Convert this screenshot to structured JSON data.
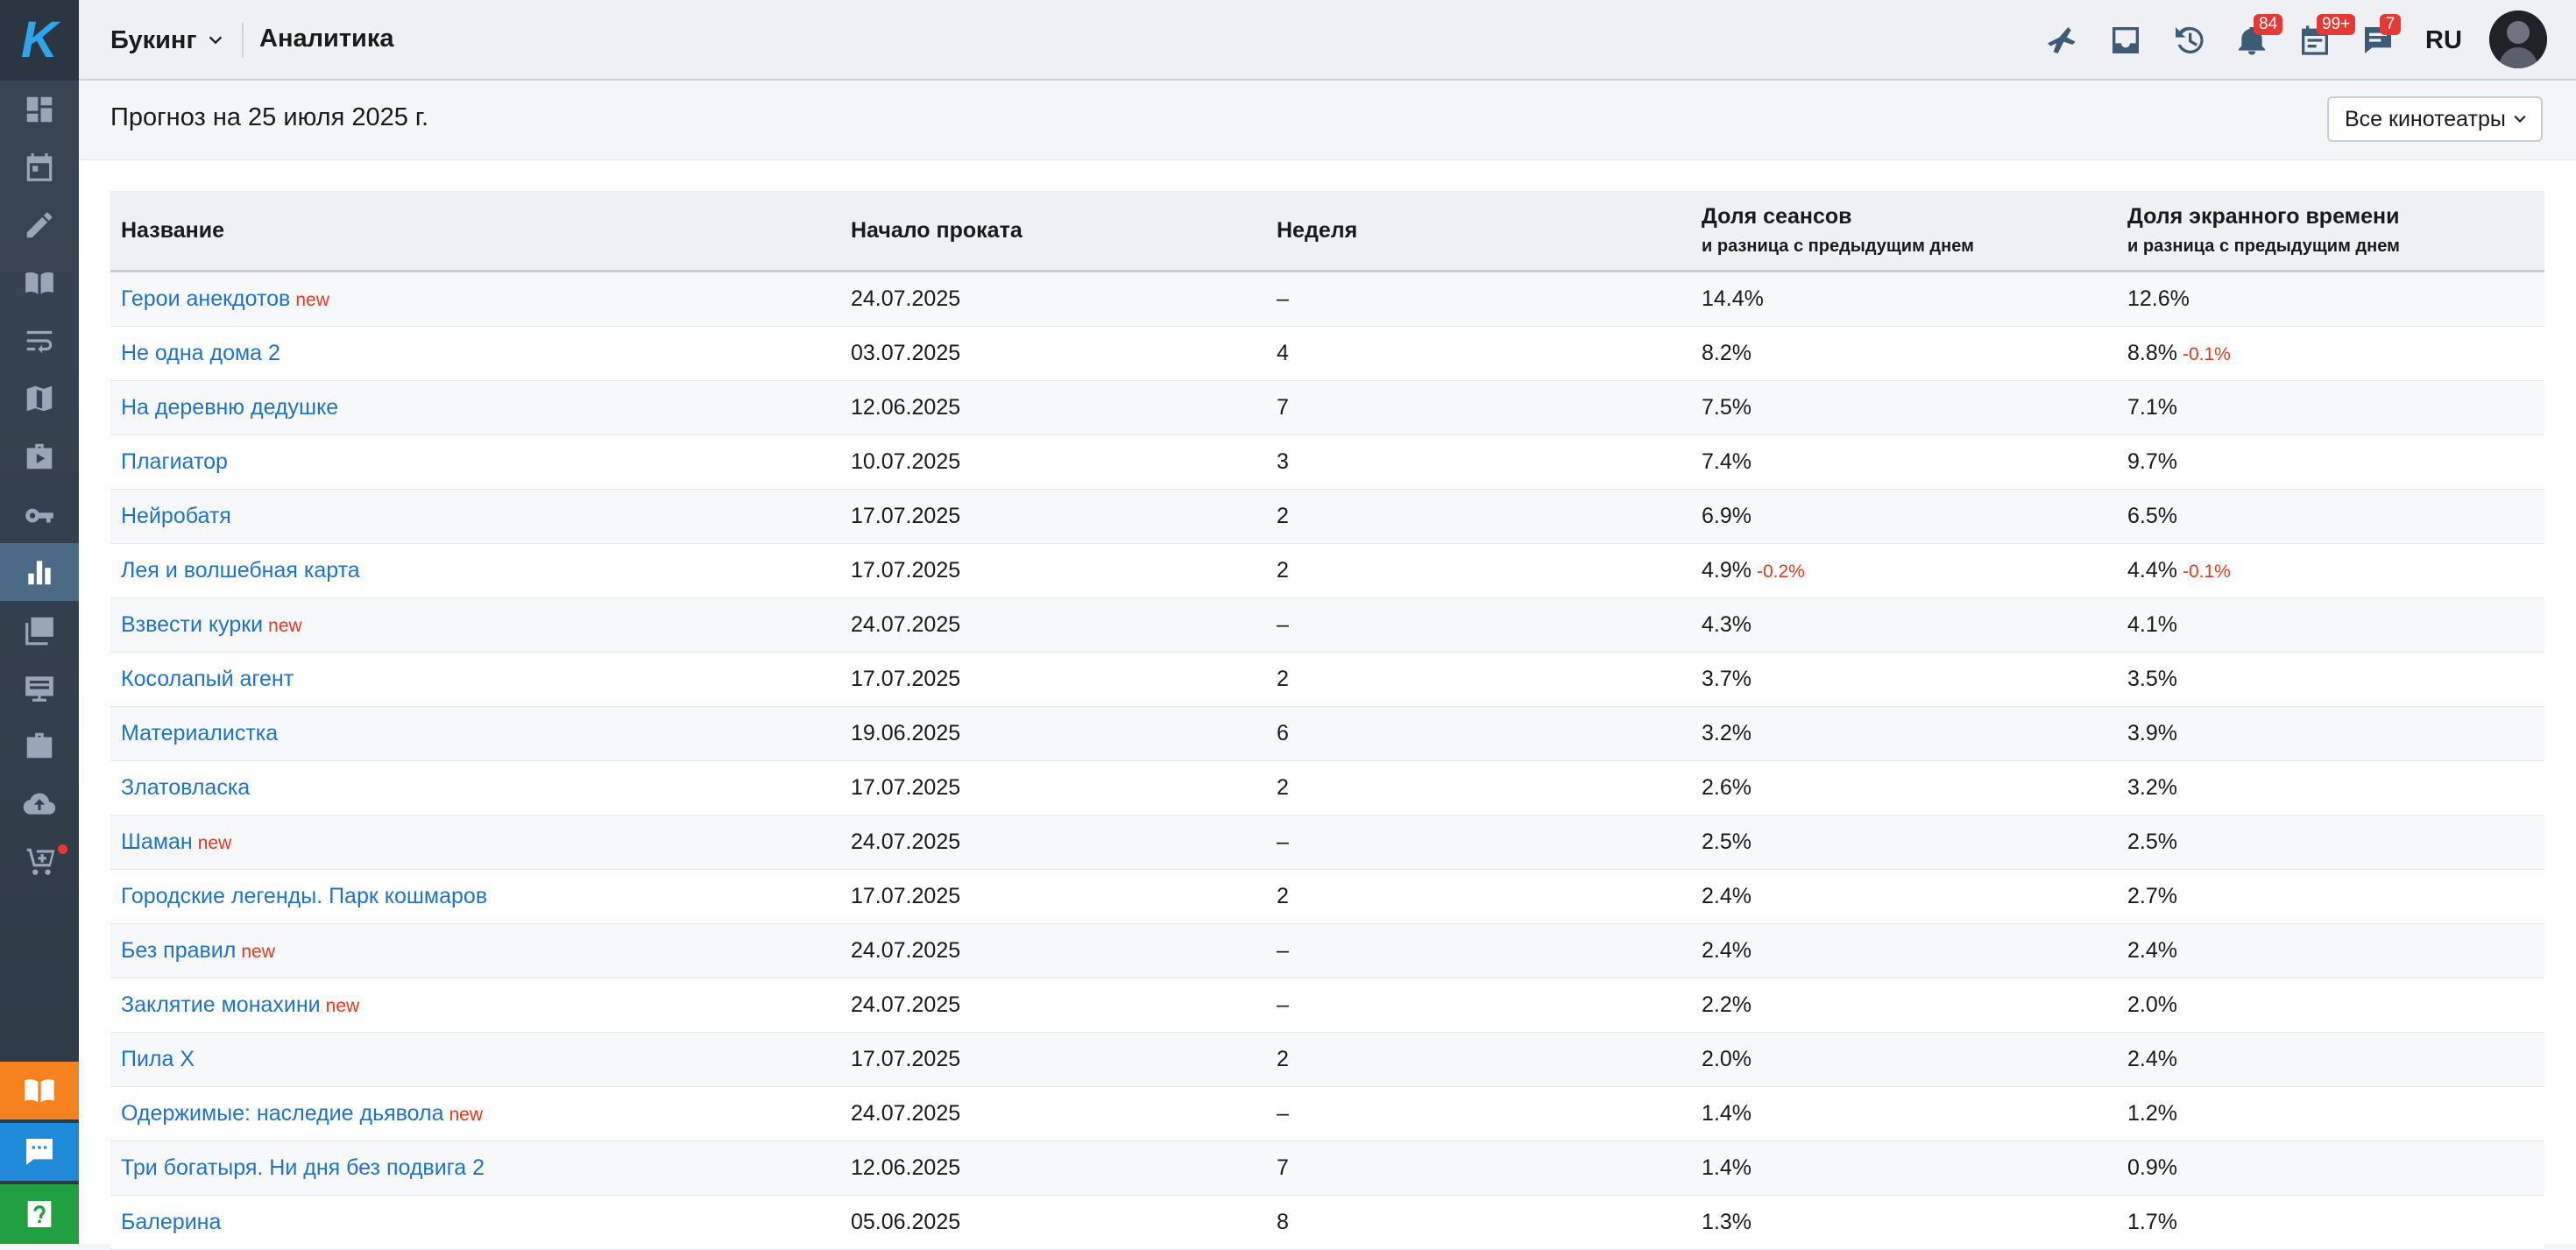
{
  "app": {
    "logo_letter": "K",
    "section_switch": "Букинг",
    "page_title": "Аналитика",
    "language": "RU"
  },
  "badges": {
    "notifications": "84",
    "tasks": "99+",
    "messages": "7"
  },
  "forecast_title": "Прогноз на 25 июля 2025 г.",
  "cinema_filter": {
    "selected": "Все кинотеатры"
  },
  "table": {
    "columns": {
      "name": "Название",
      "release_start": "Начало проката",
      "week": "Неделя",
      "sessions_share": "Доля сеансов",
      "sessions_share_sub": "и разница с предыдущим днем",
      "screen_time_share": "Доля экранного времени",
      "screen_time_share_sub": "и разница с предыдущим днем"
    },
    "rows": [
      {
        "name": "Герои анекдотов",
        "new": "new",
        "start": "24.07.2025",
        "week": "–",
        "sessions": "14.4%",
        "sessions_diff": "",
        "screen": "12.6%",
        "screen_diff": ""
      },
      {
        "name": "Не одна дома 2",
        "new": "",
        "start": "03.07.2025",
        "week": "4",
        "sessions": "8.2%",
        "sessions_diff": "",
        "screen": "8.8%",
        "screen_diff": "-0.1%"
      },
      {
        "name": "На деревню дедушке",
        "new": "",
        "start": "12.06.2025",
        "week": "7",
        "sessions": "7.5%",
        "sessions_diff": "",
        "screen": "7.1%",
        "screen_diff": ""
      },
      {
        "name": "Плагиатор",
        "new": "",
        "start": "10.07.2025",
        "week": "3",
        "sessions": "7.4%",
        "sessions_diff": "",
        "screen": "9.7%",
        "screen_diff": ""
      },
      {
        "name": "Нейробатя",
        "new": "",
        "start": "17.07.2025",
        "week": "2",
        "sessions": "6.9%",
        "sessions_diff": "",
        "screen": "6.5%",
        "screen_diff": ""
      },
      {
        "name": "Лея и волшебная карта",
        "new": "",
        "start": "17.07.2025",
        "week": "2",
        "sessions": "4.9%",
        "sessions_diff": "-0.2%",
        "screen": "4.4%",
        "screen_diff": "-0.1%"
      },
      {
        "name": "Взвести курки",
        "new": "new",
        "start": "24.07.2025",
        "week": "–",
        "sessions": "4.3%",
        "sessions_diff": "",
        "screen": "4.1%",
        "screen_diff": ""
      },
      {
        "name": "Косолапый агент",
        "new": "",
        "start": "17.07.2025",
        "week": "2",
        "sessions": "3.7%",
        "sessions_diff": "",
        "screen": "3.5%",
        "screen_diff": ""
      },
      {
        "name": "Материалистка",
        "new": "",
        "start": "19.06.2025",
        "week": "6",
        "sessions": "3.2%",
        "sessions_diff": "",
        "screen": "3.9%",
        "screen_diff": ""
      },
      {
        "name": "Златовласка",
        "new": "",
        "start": "17.07.2025",
        "week": "2",
        "sessions": "2.6%",
        "sessions_diff": "",
        "screen": "3.2%",
        "screen_diff": ""
      },
      {
        "name": "Шаман",
        "new": "new",
        "start": "24.07.2025",
        "week": "–",
        "sessions": "2.5%",
        "sessions_diff": "",
        "screen": "2.5%",
        "screen_diff": ""
      },
      {
        "name": "Городские легенды. Парк кошмаров",
        "new": "",
        "start": "17.07.2025",
        "week": "2",
        "sessions": "2.4%",
        "sessions_diff": "",
        "screen": "2.7%",
        "screen_diff": ""
      },
      {
        "name": "Без правил",
        "new": "new",
        "start": "24.07.2025",
        "week": "–",
        "sessions": "2.4%",
        "sessions_diff": "",
        "screen": "2.4%",
        "screen_diff": ""
      },
      {
        "name": "Заклятие монахини",
        "new": "new",
        "start": "24.07.2025",
        "week": "–",
        "sessions": "2.2%",
        "sessions_diff": "",
        "screen": "2.0%",
        "screen_diff": ""
      },
      {
        "name": "Пила Х",
        "new": "",
        "start": "17.07.2025",
        "week": "2",
        "sessions": "2.0%",
        "sessions_diff": "",
        "screen": "2.4%",
        "screen_diff": ""
      },
      {
        "name": "Одержимые: наследие дьявола",
        "new": "new",
        "start": "24.07.2025",
        "week": "–",
        "sessions": "1.4%",
        "sessions_diff": "",
        "screen": "1.2%",
        "screen_diff": ""
      },
      {
        "name": "Три богатыря. Ни дня без подвига 2",
        "new": "",
        "start": "12.06.2025",
        "week": "7",
        "sessions": "1.4%",
        "sessions_diff": "",
        "screen": "0.9%",
        "screen_diff": ""
      },
      {
        "name": "Балерина",
        "new": "",
        "start": "05.06.2025",
        "week": "8",
        "sessions": "1.3%",
        "sessions_diff": "",
        "screen": "1.7%",
        "screen_diff": ""
      }
    ]
  },
  "colors": {
    "accent_link": "#1e73c8",
    "new_tag": "#e03a1e",
    "sidebar": "#2e3946",
    "kb_button": "#f5821f",
    "chat_button": "#1e8ad8",
    "help_button": "#20a040"
  }
}
